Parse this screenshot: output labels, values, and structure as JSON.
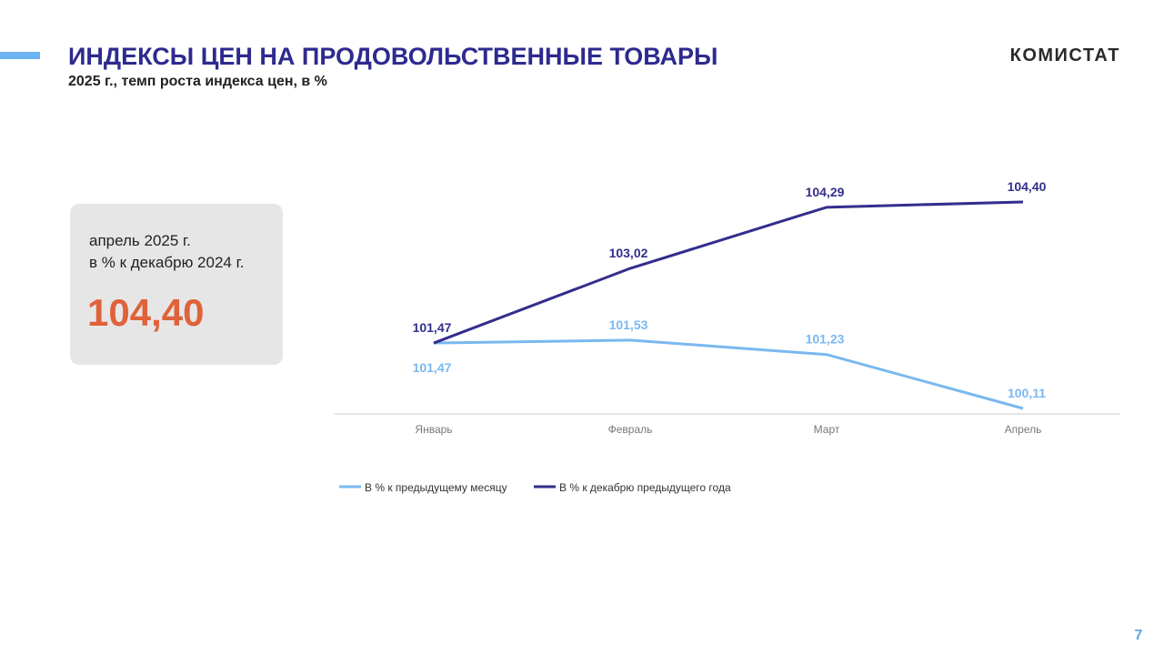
{
  "header": {
    "title": "ИНДЕКСЫ ЦЕН НА ПРОДОВОЛЬСТВЕННЫЕ  ТОВАРЫ",
    "subtitle": "2025 г., темп роста индекса цен, в %",
    "logo": "КОМИСТАТ"
  },
  "card": {
    "line1": "апрель 2025 г.",
    "line2": "в % к декабрю 2024 г.",
    "value": "104,40"
  },
  "page_number": "7",
  "chart_data": {
    "type": "line",
    "categories": [
      "Январь",
      "Февраль",
      "Март",
      "Апрель"
    ],
    "series": [
      {
        "name": "В % к предыдущему месяцу",
        "color": "#7ab8f0",
        "values": [
          101.47,
          101.53,
          101.23,
          100.11
        ],
        "value_labels": [
          "101,47",
          "101,53",
          "101,23",
          "100,11"
        ]
      },
      {
        "name": "В % к декабрю предыдущего года",
        "color": "#332e8c",
        "values": [
          101.47,
          103.02,
          104.29,
          104.4
        ],
        "value_labels": [
          "101,47",
          "103,02",
          "104,29",
          "104,40"
        ]
      }
    ]
  }
}
